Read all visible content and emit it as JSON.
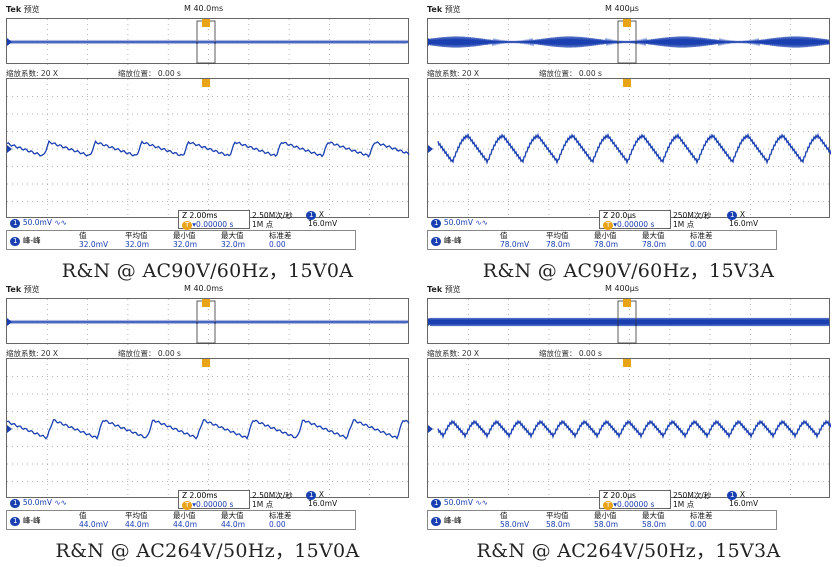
{
  "panels": [
    {
      "brand": "Tek",
      "mode": "预览",
      "timebase": "M 40.0ms",
      "zoom_factor_label": "缩放系数:",
      "zoom_factor": "20 X",
      "zoom_pos_label": "缩放位置：",
      "zoom_pos": "0.00 s",
      "zoom_time": "Z 2.00ms",
      "sample_rate": "2.50M次/秒",
      "record_len": "1M 点",
      "ch_scale": "50.0mV",
      "trig_chip": "1",
      "trig_x": "X",
      "trig_level": "16.0mV",
      "trig_pos": "▾0.00000 s",
      "meas_chip": "1",
      "meas_name": "峰-峰",
      "col_headers": [
        "值",
        "平均值",
        "最小值",
        "最大值",
        "标准差"
      ],
      "col_values": [
        "32.0mV",
        "32.0m",
        "32.0m",
        "32.0m",
        "0.00"
      ],
      "caption": "R&N @ AC90V/60Hz，15V0A"
    },
    {
      "brand": "Tek",
      "mode": "预览",
      "timebase": "M 400μs",
      "zoom_factor_label": "缩放系数:",
      "zoom_factor": "20 X",
      "zoom_pos_label": "缩放位置：",
      "zoom_pos": "0.00 s",
      "zoom_time": "Z 20.0μs",
      "sample_rate": "250M次/秒",
      "record_len": "1M 点",
      "ch_scale": "50.0mV",
      "trig_chip": "1",
      "trig_x": "X",
      "trig_level": "16.0mV",
      "trig_pos": "▾0.00000 s",
      "meas_chip": "1",
      "meas_name": "峰-峰",
      "col_headers": [
        "值",
        "平均值",
        "最小值",
        "最大值",
        "标准差"
      ],
      "col_values": [
        "78.0mV",
        "78.0m",
        "78.0m",
        "78.0m",
        "0.00"
      ],
      "caption": "R&N @ AC90V/60Hz，15V3A"
    },
    {
      "brand": "Tek",
      "mode": "预览",
      "timebase": "M 40.0ms",
      "zoom_factor_label": "缩放系数:",
      "zoom_factor": "20 X",
      "zoom_pos_label": "缩放位置：",
      "zoom_pos": "0.00 s",
      "zoom_time": "Z 2.00ms",
      "sample_rate": "2.50M次/秒",
      "record_len": "1M 点",
      "ch_scale": "50.0mV",
      "trig_chip": "1",
      "trig_x": "X",
      "trig_level": "16.0mV",
      "trig_pos": "▾0.00000 s",
      "meas_chip": "1",
      "meas_name": "峰-峰",
      "col_headers": [
        "值",
        "平均值",
        "最小值",
        "最大值",
        "标准差"
      ],
      "col_values": [
        "44.0mV",
        "44.0m",
        "44.0m",
        "44.0m",
        "0.00"
      ],
      "caption": "R&N @ AC264V/50Hz，15V0A"
    },
    {
      "brand": "Tek",
      "mode": "预览",
      "timebase": "M 400μs",
      "zoom_factor_label": "缩放系数:",
      "zoom_factor": "20 X",
      "zoom_pos_label": "缩放位置：",
      "zoom_pos": "0.00 s",
      "zoom_time": "Z 20.0μs",
      "sample_rate": "250M次/秒",
      "record_len": "1M 点",
      "ch_scale": "50.0mV",
      "trig_chip": "1",
      "trig_x": "X",
      "trig_level": "16.0mV",
      "trig_pos": "▾0.00000 s",
      "meas_chip": "1",
      "meas_name": "峰-峰",
      "col_headers": [
        "值",
        "平均值",
        "最小值",
        "最大值",
        "标准差"
      ],
      "col_values": [
        "58.0mV",
        "58.0m",
        "58.0m",
        "58.0m",
        "0.00"
      ],
      "caption": "R&N @ AC264V/50Hz，15V3A"
    }
  ],
  "trace_color": "#1a3fb0",
  "marker_color": "#e8a317"
}
